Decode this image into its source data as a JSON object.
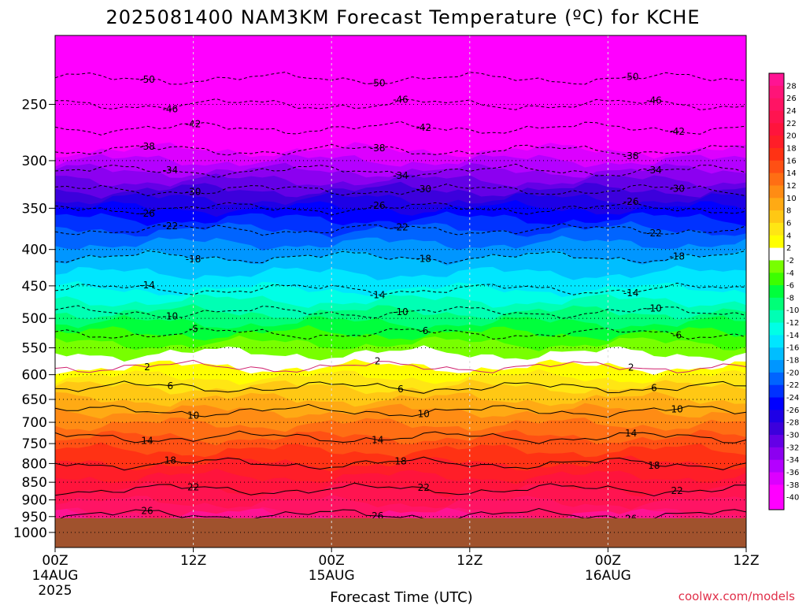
{
  "chart_data": {
    "type": "heatmap",
    "title": "2025081400 NAM3KM Forecast Temperature (ºC) for KCHE",
    "xlabel": "Forecast Time (UTC)",
    "ylabel": "",
    "credit": "coolwx.com/models",
    "x_ticks": [
      {
        "hour": 0,
        "label": "00Z",
        "sub1": "14AUG",
        "sub2": "2025"
      },
      {
        "hour": 12,
        "label": "12Z",
        "sub1": "",
        "sub2": ""
      },
      {
        "hour": 24,
        "label": "00Z",
        "sub1": "15AUG",
        "sub2": ""
      },
      {
        "hour": 36,
        "label": "12Z",
        "sub1": "",
        "sub2": ""
      },
      {
        "hour": 48,
        "label": "00Z",
        "sub1": "16AUG",
        "sub2": ""
      },
      {
        "hour": 60,
        "label": "12Z",
        "sub1": "",
        "sub2": ""
      }
    ],
    "xlim_hours": [
      0,
      60
    ],
    "y_axis": "pressure (hPa), log scale, inverted",
    "ylim_hpa": [
      1050,
      200
    ],
    "y_ticks": [
      250,
      300,
      350,
      400,
      450,
      500,
      550,
      600,
      650,
      700,
      750,
      800,
      850,
      900,
      950,
      1000
    ],
    "surface_pressure_hpa": 955,
    "surface_color": "#a0522d",
    "colorbar": {
      "levels": [
        28,
        26,
        24,
        22,
        20,
        18,
        16,
        14,
        12,
        10,
        8,
        6,
        4,
        2,
        -2,
        -4,
        -6,
        -8,
        -10,
        -12,
        -14,
        -16,
        -18,
        -20,
        -22,
        -24,
        -26,
        -28,
        -30,
        -32,
        -34,
        -36,
        -38,
        -40
      ],
      "colors": [
        "#ff1493",
        "#ff1478",
        "#ff1464",
        "#ff1450",
        "#ff143c",
        "#ff1e28",
        "#ff3214",
        "#ff5014",
        "#ff6e14",
        "#ff8c14",
        "#ffaa14",
        "#ffc814",
        "#ffe614",
        "#ffff00",
        "#ffffff",
        "#78ff00",
        "#3cff00",
        "#00ff3c",
        "#00ff78",
        "#00ffb4",
        "#00ffe6",
        "#00e6ff",
        "#00beff",
        "#0096ff",
        "#0064ff",
        "#0032ff",
        "#0000ff",
        "#1e00e6",
        "#3c00dc",
        "#6400e6",
        "#8c00f0",
        "#b400ff",
        "#dc00ff",
        "#ff00ff",
        "#ff00ff"
      ]
    },
    "temperature_profile": [
      {
        "p": 200,
        "t": -56
      },
      {
        "p": 230,
        "t": -50
      },
      {
        "p": 250,
        "t": -46
      },
      {
        "p": 270,
        "t": -42
      },
      {
        "p": 290,
        "t": -38
      },
      {
        "p": 310,
        "t": -34
      },
      {
        "p": 330,
        "t": -30
      },
      {
        "p": 350,
        "t": -26
      },
      {
        "p": 375,
        "t": -22
      },
      {
        "p": 410,
        "t": -18
      },
      {
        "p": 455,
        "t": -14
      },
      {
        "p": 490,
        "t": -10
      },
      {
        "p": 525,
        "t": -6
      },
      {
        "p": 560,
        "t": -2
      },
      {
        "p": 585,
        "t": 2
      },
      {
        "p": 625,
        "t": 6
      },
      {
        "p": 675,
        "t": 10
      },
      {
        "p": 735,
        "t": 14
      },
      {
        "p": 800,
        "t": 18
      },
      {
        "p": 870,
        "t": 22
      },
      {
        "p": 945,
        "t": 26
      }
    ],
    "contours": [
      {
        "value": -50,
        "label": "-50"
      },
      {
        "value": -46,
        "label": "-46"
      },
      {
        "value": -42,
        "label": "-42"
      },
      {
        "value": -38,
        "label": "-38"
      },
      {
        "value": -34,
        "label": "-34"
      },
      {
        "value": -30,
        "label": "-30"
      },
      {
        "value": -26,
        "label": "-26"
      },
      {
        "value": -22,
        "label": "-22"
      },
      {
        "value": -18,
        "label": "-18"
      },
      {
        "value": -14,
        "label": "-14"
      },
      {
        "value": -10,
        "label": "-10"
      },
      {
        "value": -6,
        "label": "-6"
      },
      {
        "value": 2,
        "label": "2"
      },
      {
        "value": 6,
        "label": "6"
      },
      {
        "value": 10,
        "label": "10"
      },
      {
        "value": 14,
        "label": "14"
      },
      {
        "value": 18,
        "label": "18"
      },
      {
        "value": 22,
        "label": "22"
      },
      {
        "value": 26,
        "label": "26"
      }
    ],
    "grid": true
  }
}
